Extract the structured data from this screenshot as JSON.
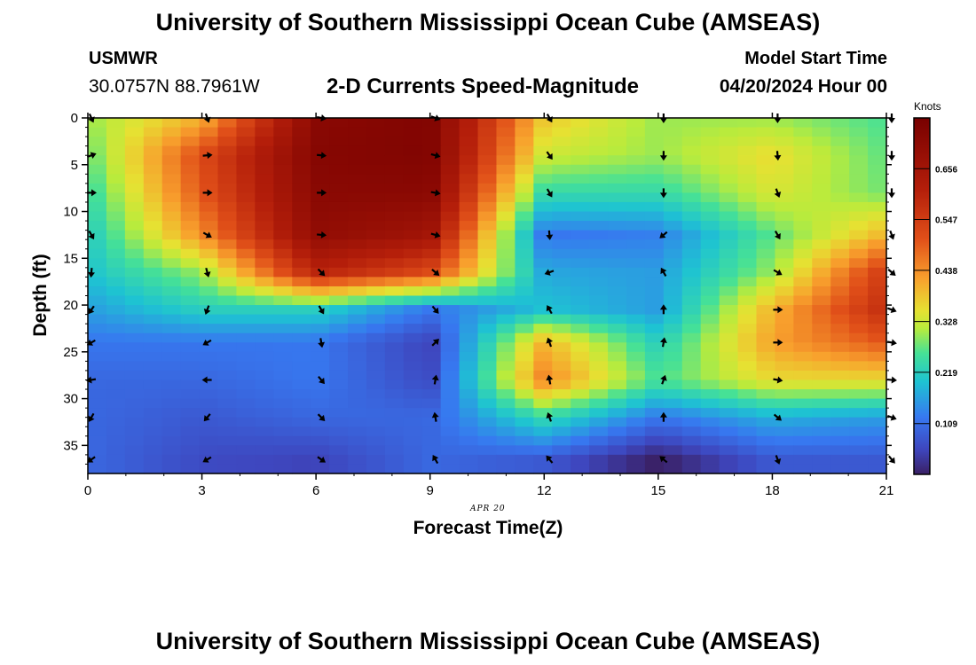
{
  "header": {
    "title": "University of Southern Mississippi Ocean Cube (AMSEAS)",
    "station": "USMWR",
    "coords": "30.0757N  88.7961W",
    "subtitle": "2-D Currents Speed-Magnitude",
    "model_start_label": "Model Start Time",
    "model_start_value": "04/20/2024 Hour 00"
  },
  "footer": {
    "title": "University of Southern Mississippi Ocean Cube (AMSEAS)"
  },
  "chart_data": {
    "type": "heatmap",
    "title": "2-D Currents Speed-Magnitude",
    "xlabel": "Forecast Time(Z)",
    "ylabel": "Depth (ft)",
    "date_label": "APR 20",
    "xlim": [
      0,
      21
    ],
    "ylim": [
      0,
      38
    ],
    "x_ticks": [
      0,
      3,
      6,
      9,
      12,
      15,
      18,
      21
    ],
    "y_ticks": [
      0,
      5,
      10,
      15,
      20,
      25,
      30,
      35
    ],
    "units": "Knots",
    "colorbar": {
      "min": 0.0,
      "max": 0.765,
      "ticks": [
        "0.109",
        "0.219",
        "0.328",
        "0.438",
        "0.547",
        "0.656"
      ],
      "tick_values": [
        0.109,
        0.219,
        0.328,
        0.438,
        0.547,
        0.656
      ]
    },
    "x_hours": [
      0,
      3,
      6,
      9,
      12,
      15,
      18,
      21
    ],
    "y_depths_ft": [
      0,
      4,
      8,
      12.5,
      16.5,
      20.5,
      24,
      28,
      32,
      36.5
    ],
    "speed_knots": [
      [
        0.3,
        0.4,
        0.72,
        0.74,
        0.38,
        0.3,
        0.3,
        0.26
      ],
      [
        0.27,
        0.52,
        0.73,
        0.74,
        0.33,
        0.3,
        0.36,
        0.27
      ],
      [
        0.24,
        0.5,
        0.72,
        0.72,
        0.24,
        0.24,
        0.34,
        0.28
      ],
      [
        0.21,
        0.44,
        0.7,
        0.66,
        0.12,
        0.13,
        0.27,
        0.4
      ],
      [
        0.2,
        0.3,
        0.6,
        0.52,
        0.17,
        0.16,
        0.3,
        0.55
      ],
      [
        0.16,
        0.22,
        0.22,
        0.12,
        0.2,
        0.16,
        0.4,
        0.58
      ],
      [
        0.12,
        0.12,
        0.12,
        0.05,
        0.4,
        0.22,
        0.42,
        0.5
      ],
      [
        0.1,
        0.1,
        0.12,
        0.06,
        0.45,
        0.26,
        0.36,
        0.36
      ],
      [
        0.1,
        0.08,
        0.1,
        0.1,
        0.24,
        0.12,
        0.18,
        0.16
      ],
      [
        0.1,
        0.06,
        0.05,
        0.1,
        0.08,
        0.0,
        0.08,
        0.08
      ]
    ],
    "direction_deg": [
      [
        155,
        160,
        100,
        110,
        150,
        180,
        180,
        180
      ],
      [
        70,
        85,
        95,
        105,
        145,
        180,
        175,
        180
      ],
      [
        90,
        90,
        90,
        100,
        150,
        180,
        160,
        180
      ],
      [
        150,
        120,
        95,
        105,
        175,
        230,
        150,
        160
      ],
      [
        185,
        165,
        135,
        130,
        250,
        330,
        120,
        130
      ],
      [
        215,
        200,
        150,
        140,
        330,
        0,
        90,
        110
      ],
      [
        240,
        240,
        170,
        45,
        340,
        10,
        90,
        100
      ],
      [
        260,
        270,
        140,
        10,
        350,
        20,
        100,
        95
      ],
      [
        210,
        220,
        135,
        350,
        340,
        0,
        130,
        110
      ],
      [
        235,
        240,
        125,
        330,
        320,
        310,
        160,
        140
      ]
    ]
  }
}
